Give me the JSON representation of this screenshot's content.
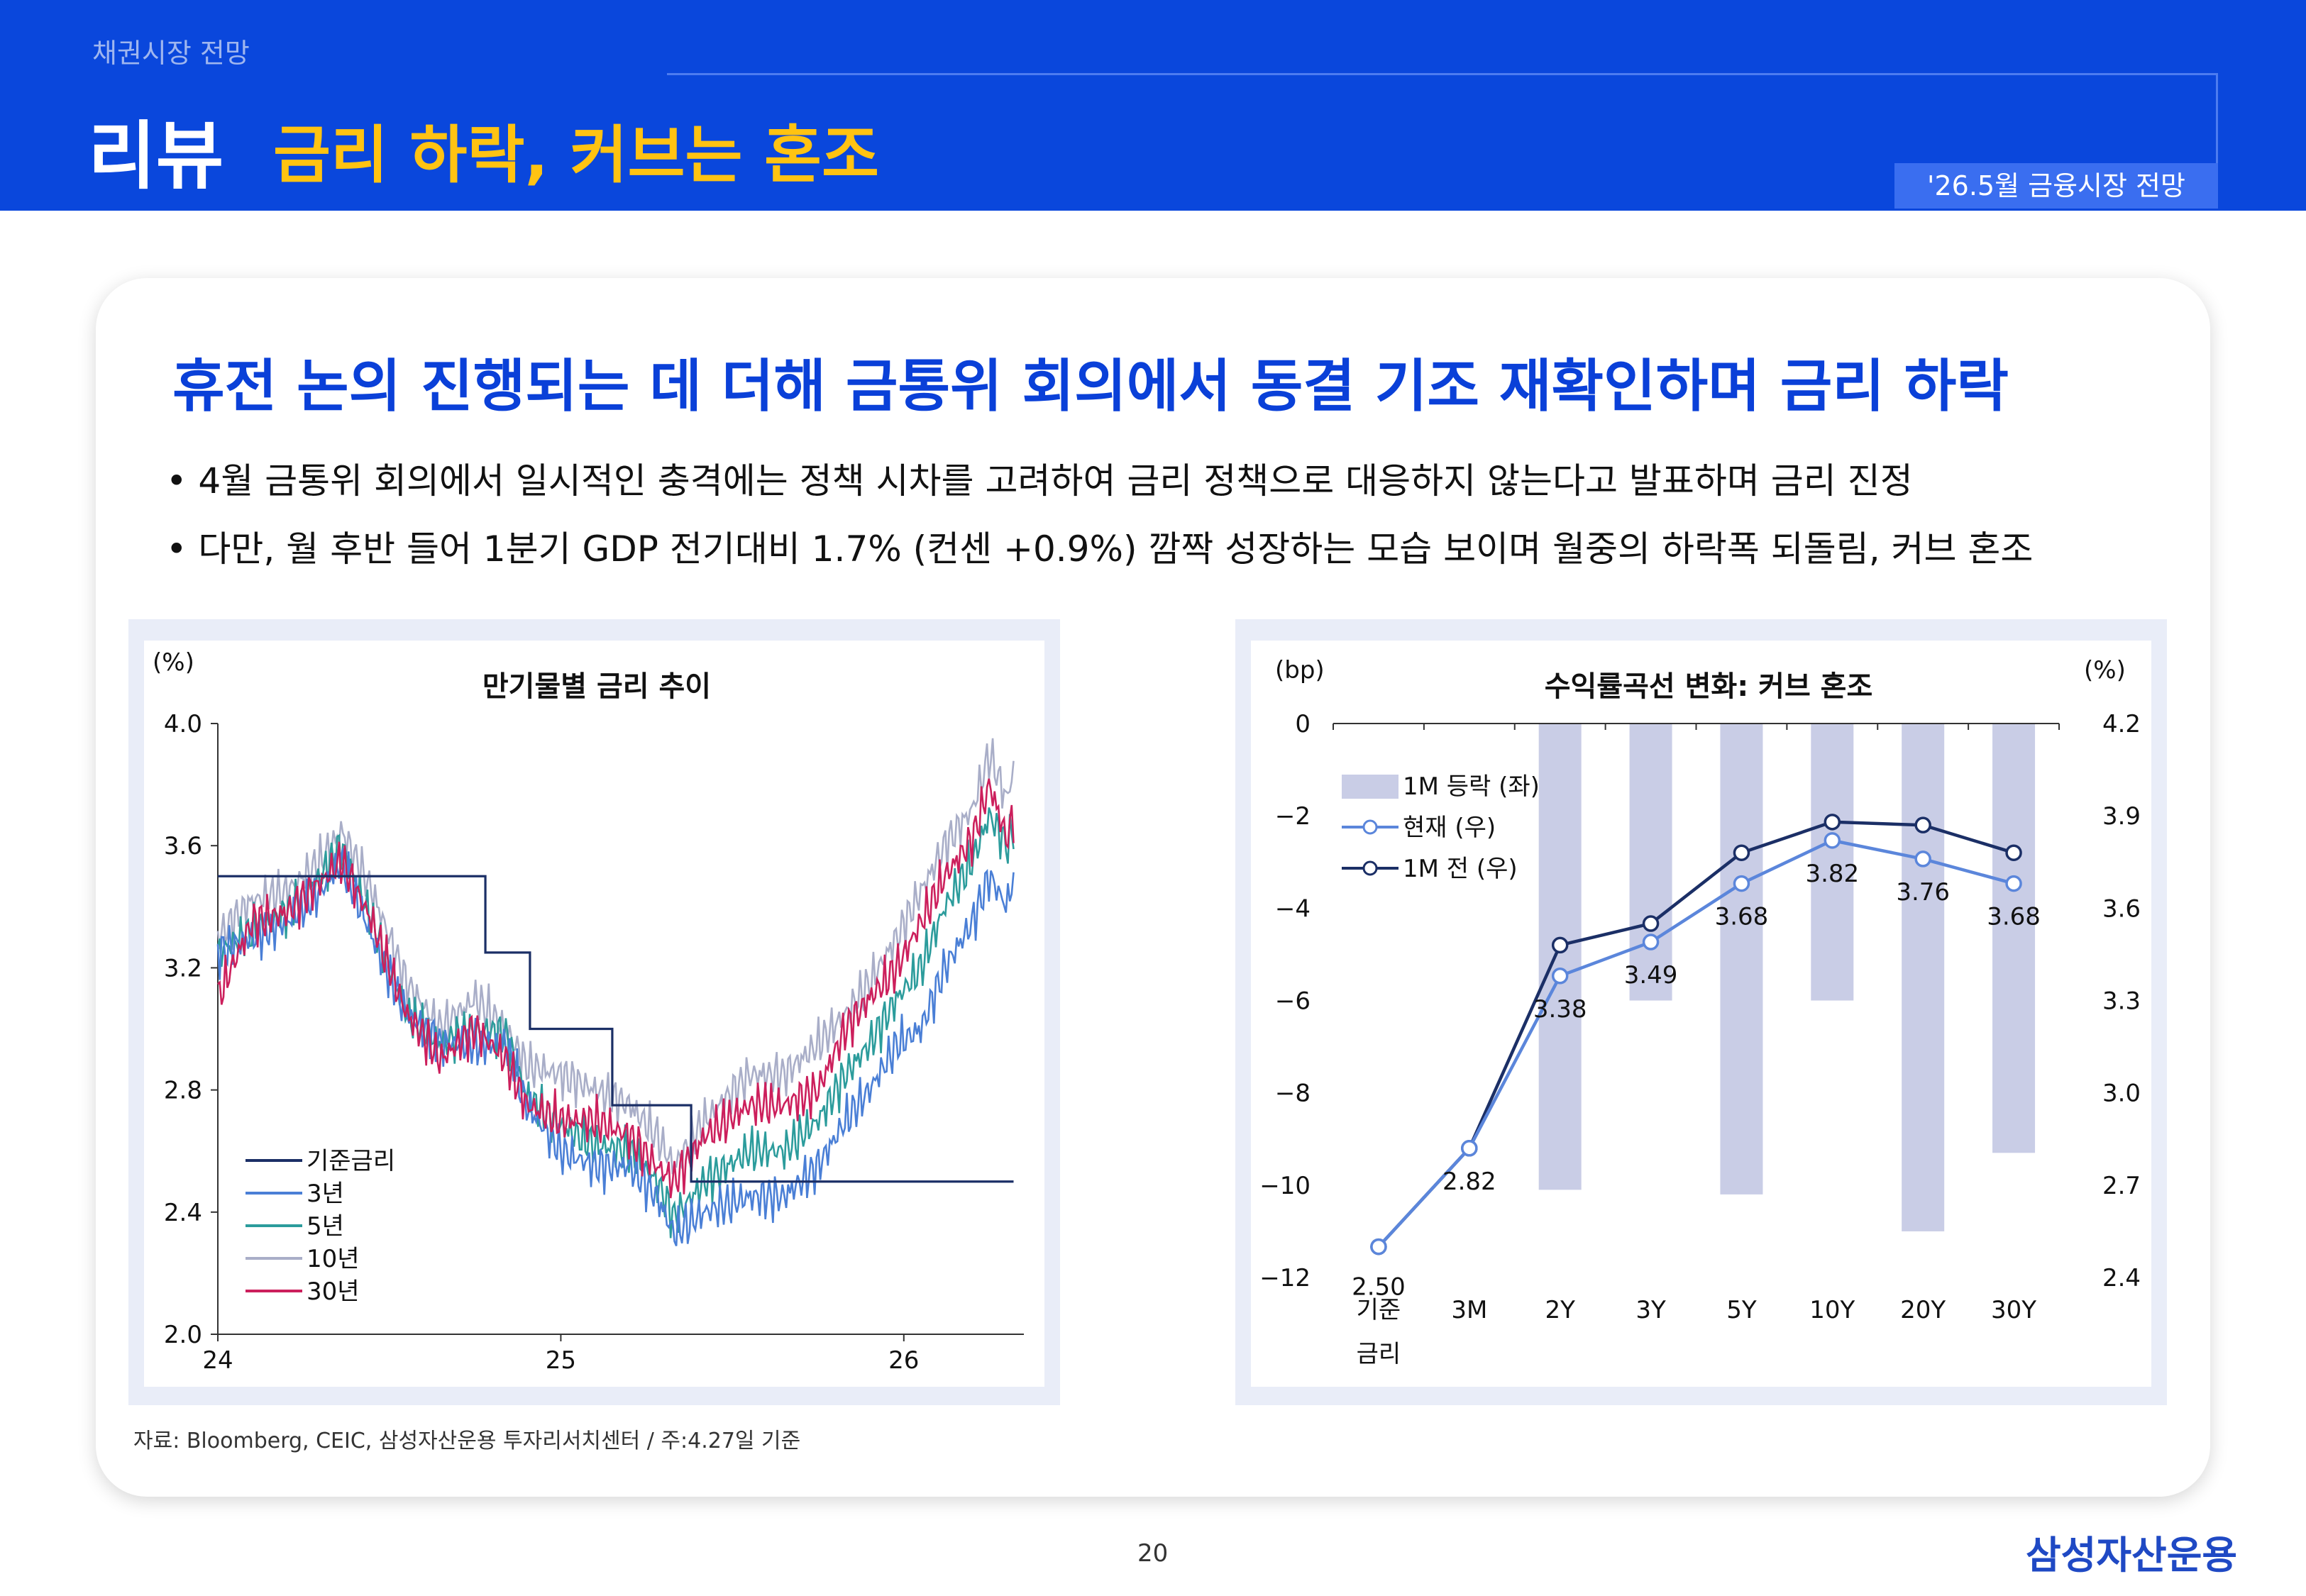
{
  "header": {
    "section": "채권시장 전망",
    "title_main": "리뷰",
    "title_sub": "금리 하락, 커브는 혼조",
    "report": "'26.5월 금융시장 전망"
  },
  "headline": "휴전 논의 진행되는 데 더해 금통위 회의에서 동결 기조 재확인하며 금리 하락",
  "bullets": [
    "• 4월 금통위 회의에서 일시적인 충격에는 정책 시차를 고려하여 금리 정책으로 대응하지 않는다고 발표하며 금리 진정",
    "• 다만, 월 후반 들어 1분기 GDP 전기대비 1.7% (컨센 +0.9%) 깜짝 성장하는 모습 보이며 월중의 하락폭 되돌림, 커브 혼조"
  ],
  "source": "자료: Bloomberg, CEIC, 삼성자산운용 투자리서치센터 / 주:4.27일 기준",
  "page_number": "20",
  "brand": "삼성자산운용",
  "colors": {
    "header_bg": "#0a47dc",
    "accent_yellow": "#ffc312",
    "headline_blue": "#0a40d8"
  },
  "chart_data": [
    {
      "type": "line",
      "title": "만기물별 금리 추이",
      "unit_label": "(%)",
      "ylim": [
        2.0,
        4.0
      ],
      "yticks": [
        "4.0",
        "3.6",
        "3.2",
        "2.8",
        "2.4",
        "2.0"
      ],
      "xticks": [
        "24",
        "25",
        "26"
      ],
      "x_range": [
        2024.0,
        2026.35
      ],
      "legend": [
        "기준금리",
        "3년",
        "5년",
        "10년",
        "30년"
      ],
      "series": [
        {
          "name": "기준금리",
          "color": "#1b2f66",
          "steps": [
            [
              2024.0,
              3.5
            ],
            [
              2024.78,
              3.25
            ],
            [
              2024.91,
              3.0
            ],
            [
              2025.15,
              2.75
            ],
            [
              2025.38,
              2.5
            ],
            [
              2026.32,
              2.5
            ]
          ]
        },
        {
          "name": "3년",
          "color": "#4a7fd6",
          "anchors": [
            [
              2024.0,
              3.25
            ],
            [
              2024.1,
              3.3
            ],
            [
              2024.2,
              3.35
            ],
            [
              2024.3,
              3.45
            ],
            [
              2024.36,
              3.55
            ],
            [
              2024.45,
              3.3
            ],
            [
              2024.55,
              3.05
            ],
            [
              2024.65,
              2.95
            ],
            [
              2024.75,
              2.95
            ],
            [
              2024.84,
              2.95
            ],
            [
              2024.9,
              2.75
            ],
            [
              2025.0,
              2.6
            ],
            [
              2025.1,
              2.55
            ],
            [
              2025.2,
              2.55
            ],
            [
              2025.28,
              2.45
            ],
            [
              2025.33,
              2.33
            ],
            [
              2025.42,
              2.4
            ],
            [
              2025.55,
              2.45
            ],
            [
              2025.65,
              2.45
            ],
            [
              2025.75,
              2.55
            ],
            [
              2025.83,
              2.7
            ],
            [
              2025.9,
              2.8
            ],
            [
              2025.98,
              2.95
            ],
            [
              2026.05,
              3.0
            ],
            [
              2026.12,
              3.2
            ],
            [
              2026.2,
              3.35
            ],
            [
              2026.25,
              3.5
            ],
            [
              2026.3,
              3.4
            ],
            [
              2026.32,
              3.5
            ]
          ]
        },
        {
          "name": "5년",
          "color": "#2c9c9c",
          "anchors": [
            [
              2024.0,
              3.25
            ],
            [
              2024.1,
              3.32
            ],
            [
              2024.2,
              3.38
            ],
            [
              2024.3,
              3.5
            ],
            [
              2024.36,
              3.6
            ],
            [
              2024.45,
              3.35
            ],
            [
              2024.55,
              3.05
            ],
            [
              2024.65,
              2.95
            ],
            [
              2024.75,
              3.0
            ],
            [
              2024.84,
              2.98
            ],
            [
              2024.9,
              2.78
            ],
            [
              2025.0,
              2.68
            ],
            [
              2025.1,
              2.62
            ],
            [
              2025.2,
              2.6
            ],
            [
              2025.28,
              2.5
            ],
            [
              2025.33,
              2.38
            ],
            [
              2025.42,
              2.5
            ],
            [
              2025.55,
              2.6
            ],
            [
              2025.65,
              2.6
            ],
            [
              2025.75,
              2.7
            ],
            [
              2025.83,
              2.85
            ],
            [
              2025.9,
              2.95
            ],
            [
              2025.98,
              3.1
            ],
            [
              2026.05,
              3.2
            ],
            [
              2026.12,
              3.4
            ],
            [
              2026.2,
              3.55
            ],
            [
              2026.25,
              3.7
            ],
            [
              2026.3,
              3.6
            ],
            [
              2026.32,
              3.65
            ]
          ]
        },
        {
          "name": "10년",
          "color": "#a9aec8",
          "anchors": [
            [
              2024.0,
              3.3
            ],
            [
              2024.1,
              3.42
            ],
            [
              2024.2,
              3.45
            ],
            [
              2024.3,
              3.55
            ],
            [
              2024.36,
              3.65
            ],
            [
              2024.45,
              3.45
            ],
            [
              2024.55,
              3.15
            ],
            [
              2024.65,
              3.0
            ],
            [
              2024.75,
              3.1
            ],
            [
              2024.84,
              3.0
            ],
            [
              2024.9,
              2.88
            ],
            [
              2025.0,
              2.85
            ],
            [
              2025.1,
              2.8
            ],
            [
              2025.2,
              2.75
            ],
            [
              2025.28,
              2.65
            ],
            [
              2025.33,
              2.55
            ],
            [
              2025.42,
              2.7
            ],
            [
              2025.55,
              2.85
            ],
            [
              2025.65,
              2.85
            ],
            [
              2025.75,
              2.95
            ],
            [
              2025.83,
              3.05
            ],
            [
              2025.9,
              3.15
            ],
            [
              2025.98,
              3.3
            ],
            [
              2026.05,
              3.45
            ],
            [
              2026.12,
              3.6
            ],
            [
              2026.2,
              3.72
            ],
            [
              2026.25,
              3.9
            ],
            [
              2026.3,
              3.75
            ],
            [
              2026.32,
              3.85
            ]
          ]
        },
        {
          "name": "30년",
          "color": "#cc1f5c",
          "anchors": [
            [
              2024.0,
              3.1
            ],
            [
              2024.1,
              3.35
            ],
            [
              2024.2,
              3.38
            ],
            [
              2024.3,
              3.48
            ],
            [
              2024.36,
              3.55
            ],
            [
              2024.45,
              3.35
            ],
            [
              2024.55,
              3.05
            ],
            [
              2024.65,
              2.9
            ],
            [
              2024.75,
              3.0
            ],
            [
              2024.84,
              2.9
            ],
            [
              2024.9,
              2.75
            ],
            [
              2025.0,
              2.7
            ],
            [
              2025.1,
              2.7
            ],
            [
              2025.2,
              2.65
            ],
            [
              2025.28,
              2.55
            ],
            [
              2025.33,
              2.5
            ],
            [
              2025.42,
              2.65
            ],
            [
              2025.55,
              2.75
            ],
            [
              2025.65,
              2.75
            ],
            [
              2025.75,
              2.8
            ],
            [
              2025.83,
              3.0
            ],
            [
              2025.9,
              3.1
            ],
            [
              2025.98,
              3.2
            ],
            [
              2026.05,
              3.35
            ],
            [
              2026.12,
              3.5
            ],
            [
              2026.2,
              3.62
            ],
            [
              2026.25,
              3.8
            ],
            [
              2026.3,
              3.62
            ],
            [
              2026.32,
              3.7
            ]
          ]
        }
      ]
    },
    {
      "type": "bar+line",
      "title": "수익률곡선 변화: 커브 혼조",
      "left_unit": "(bp)",
      "right_unit": "(%)",
      "categories": [
        "기준\n금리",
        "3M",
        "2Y",
        "3Y",
        "5Y",
        "10Y",
        "20Y",
        "30Y"
      ],
      "left_ylim": [
        -12,
        0
      ],
      "left_yticks": [
        "0",
        "-2",
        "-4",
        "-6",
        "-8",
        "-10",
        "-12"
      ],
      "right_ylim": [
        2.4,
        4.2
      ],
      "right_yticks": [
        "4.2",
        "3.9",
        "3.6",
        "3.3",
        "3.0",
        "2.7",
        "2.4"
      ],
      "series": [
        {
          "name": "1M 등락 (좌)",
          "type": "bar",
          "color": "#c9cde6",
          "values": [
            null,
            null,
            -10.1,
            -6.0,
            -10.2,
            -6.0,
            -11.0,
            -9.3
          ]
        },
        {
          "name": "현재 (우)",
          "type": "line",
          "color": "#5b86db",
          "values": [
            2.5,
            2.82,
            3.38,
            3.49,
            3.68,
            3.82,
            3.76,
            3.68
          ],
          "data_labels": [
            "2.50",
            "2.82",
            "3.38",
            "3.49",
            "3.68",
            "3.82",
            "3.76",
            "3.68"
          ]
        },
        {
          "name": "1M 전 (우)",
          "type": "line",
          "color": "#1b2f66",
          "values": [
            2.5,
            2.82,
            3.48,
            3.55,
            3.78,
            3.88,
            3.87,
            3.78
          ]
        }
      ]
    }
  ]
}
